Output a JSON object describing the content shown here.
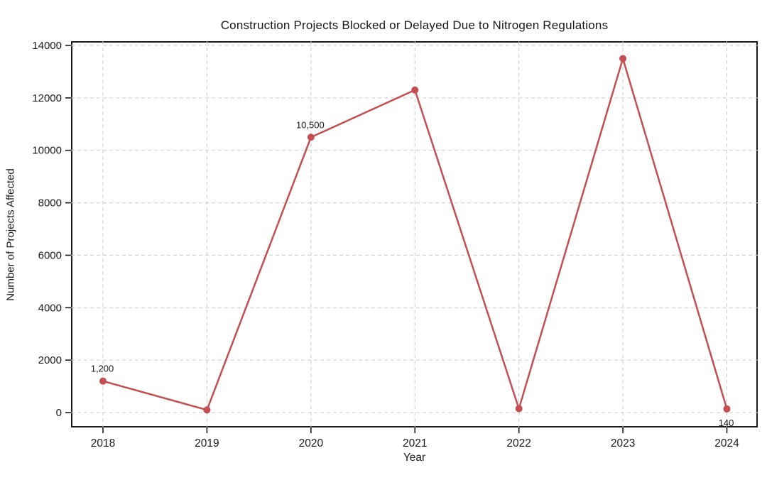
{
  "chart_data": {
    "type": "line",
    "title": "Construction Projects Blocked or Delayed Due to Nitrogen Regulations",
    "xlabel": "Year",
    "ylabel": "Number of Projects Affected",
    "categories": [
      "2018",
      "2019",
      "2020",
      "2021",
      "2022",
      "2023",
      "2024"
    ],
    "values": [
      1200,
      100,
      10500,
      12300,
      150,
      13500,
      140
    ],
    "ylim": [
      0,
      14000
    ],
    "yticks": [
      0,
      2000,
      4000,
      6000,
      8000,
      10000,
      12000,
      14000
    ],
    "grid": true,
    "grid_style": "dashed",
    "legend_position": "none",
    "line_color": "#C44E52",
    "marker": "circle",
    "annotations": [
      {
        "category": "2018",
        "text": "1,200",
        "placement": "above"
      },
      {
        "category": "2020",
        "text": "10,500",
        "placement": "above"
      },
      {
        "category": "2024",
        "text": "140",
        "placement": "below"
      }
    ]
  },
  "colors": {
    "line": "#C44E52",
    "grid": "#cccccc",
    "text": "#1a1a1a",
    "background": "#ffffff"
  }
}
